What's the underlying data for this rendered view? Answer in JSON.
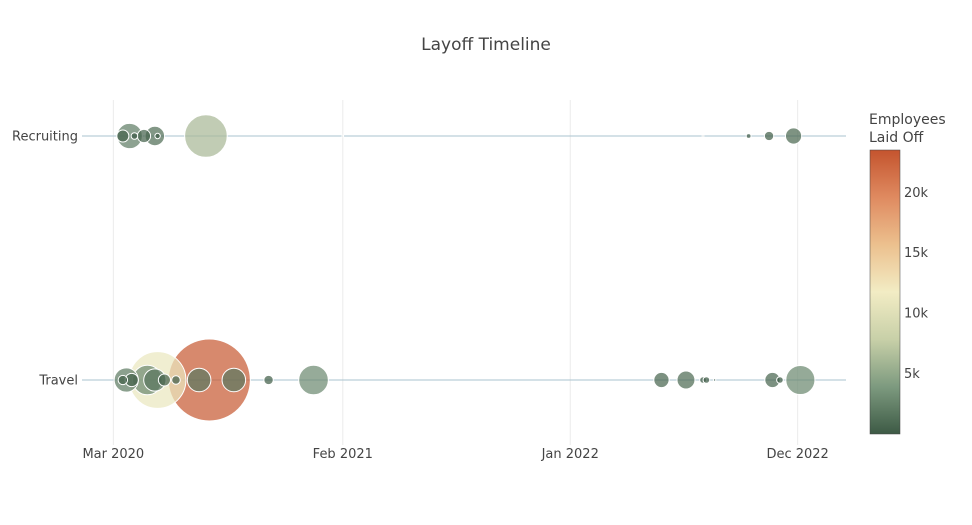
{
  "chart_data": {
    "type": "scatter",
    "title": "Layoff Timeline",
    "xlabel": "",
    "ylabel": "",
    "x_ticks": [
      "Mar 2020",
      "Feb 2021",
      "Jan 2022",
      "Dec 2022"
    ],
    "x_tick_dates": [
      "2020-03-01",
      "2021-02-01",
      "2022-01-01",
      "2022-12-01"
    ],
    "xlim": [
      "2020-01-15",
      "2023-02-10"
    ],
    "categories": [
      "Recruiting",
      "Travel"
    ],
    "grid": true,
    "colorbar": {
      "title": "Employees Laid Off",
      "tick_labels": [
        "5k",
        "10k",
        "15k",
        "20k"
      ],
      "tick_values": [
        5000,
        10000,
        15000,
        20000
      ],
      "range": [
        0,
        23500
      ],
      "colors": [
        "#3d5a45",
        "#7d9a7f",
        "#c8d0a8",
        "#f2ecc4",
        "#ecc08e",
        "#df8a60",
        "#c4542e"
      ]
    },
    "series": [
      {
        "category": "Recruiting",
        "points": [
          {
            "date": "2020-03-15",
            "value": 500
          },
          {
            "date": "2020-03-25",
            "value": 2200
          },
          {
            "date": "2020-04-01",
            "value": 150
          },
          {
            "date": "2020-04-15",
            "value": 600
          },
          {
            "date": "2020-05-01",
            "value": 1300
          },
          {
            "date": "2020-05-05",
            "value": 100
          },
          {
            "date": "2020-07-15",
            "value": 6200
          },
          {
            "date": "2021-02-01",
            "value": 5
          },
          {
            "date": "2022-07-15",
            "value": 10
          },
          {
            "date": "2022-09-20",
            "value": 80
          },
          {
            "date": "2022-10-20",
            "value": 300
          },
          {
            "date": "2022-11-25",
            "value": 900
          }
        ]
      },
      {
        "category": "Travel",
        "points": [
          {
            "date": "2020-03-15",
            "value": 300
          },
          {
            "date": "2020-03-20",
            "value": 2000
          },
          {
            "date": "2020-03-28",
            "value": 600
          },
          {
            "date": "2020-04-20",
            "value": 3000
          },
          {
            "date": "2020-05-01",
            "value": 1700
          },
          {
            "date": "2020-05-05",
            "value": 11000
          },
          {
            "date": "2020-05-15",
            "value": 500
          },
          {
            "date": "2020-06-01",
            "value": 250
          },
          {
            "date": "2020-07-05",
            "value": 1900
          },
          {
            "date": "2020-07-20",
            "value": 23000
          },
          {
            "date": "2020-08-25",
            "value": 1900
          },
          {
            "date": "2020-10-15",
            "value": 300
          },
          {
            "date": "2020-12-20",
            "value": 3000
          },
          {
            "date": "2022-05-15",
            "value": 800
          },
          {
            "date": "2022-06-20",
            "value": 1100
          },
          {
            "date": "2022-07-15",
            "value": 150
          },
          {
            "date": "2022-07-20",
            "value": 150
          },
          {
            "date": "2022-08-01",
            "value": 20
          },
          {
            "date": "2022-10-25",
            "value": 800
          },
          {
            "date": "2022-11-05",
            "value": 150
          },
          {
            "date": "2022-12-05",
            "value": 2900
          }
        ]
      }
    ]
  }
}
